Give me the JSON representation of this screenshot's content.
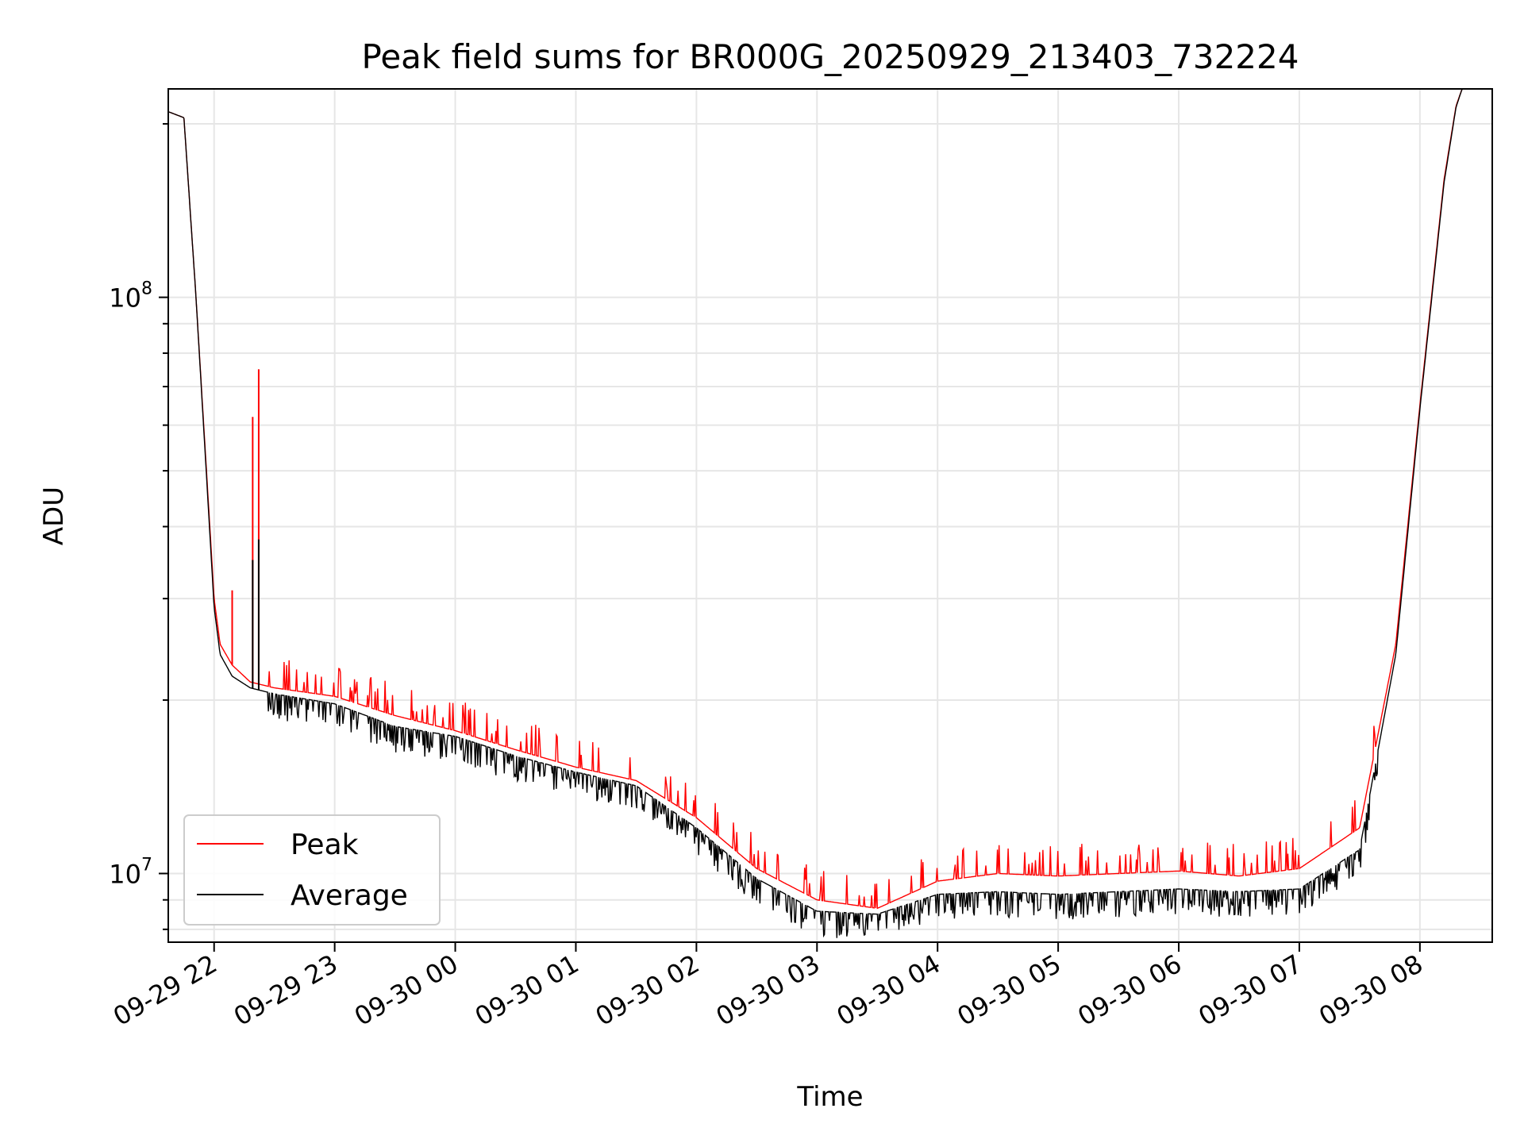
{
  "chart_data": {
    "type": "line",
    "title": "Peak field sums for BR000G_20250929_213403_732224",
    "xlabel": "Time",
    "ylabel": "ADU",
    "yscale": "log",
    "ylim": [
      7600000,
      230000000
    ],
    "xlim_hours": [
      -0.38,
      10.6
    ],
    "grid": true,
    "legend_position": "lower-left",
    "x_tick_labels": [
      "09-29 22",
      "09-29 23",
      "09-30 00",
      "09-30 01",
      "09-30 02",
      "09-30 03",
      "09-30 04",
      "09-30 05",
      "09-30 06",
      "09-30 07",
      "09-30 08"
    ],
    "y_tick_labels": [
      {
        "base": "10",
        "exp": "7"
      },
      {
        "base": "10",
        "exp": "8"
      }
    ],
    "x_hours": [
      -0.38,
      -0.25,
      -0.15,
      -0.05,
      0.0,
      0.05,
      0.15,
      0.3,
      0.5,
      1.0,
      1.5,
      2.0,
      2.5,
      3.0,
      3.5,
      4.0,
      4.5,
      5.0,
      5.5,
      6.0,
      6.5,
      7.0,
      7.5,
      8.0,
      8.5,
      9.0,
      9.5,
      9.8,
      10.0,
      10.2,
      10.3,
      10.35
    ],
    "series": [
      {
        "name": "Peak",
        "color": "#ff0000",
        "values": [
          210000000,
          205000000,
          100000000,
          45000000,
          30000000,
          25000000,
          23000000,
          21500000,
          21000000,
          20300000,
          18800000,
          17700000,
          16400000,
          15300000,
          14500000,
          12500000,
          10200000,
          9000000,
          8700000,
          9700000,
          10000000,
          9900000,
          10000000,
          10100000,
          9900000,
          10200000,
          12000000,
          25000000,
          65000000,
          160000000,
          215000000,
          230000000
        ]
      },
      {
        "name": "Average",
        "color": "#000000",
        "values": [
          210000000,
          205000000,
          100000000,
          44000000,
          29000000,
          24000000,
          22000000,
          21000000,
          20500000,
          19700000,
          18000000,
          17300000,
          16000000,
          15000000,
          14200000,
          12000000,
          9800000,
          8600000,
          8500000,
          9200000,
          9300000,
          9200000,
          9300000,
          9400000,
          9300000,
          9400000,
          11000000,
          24000000,
          64000000,
          158000000,
          214000000,
          230000000
        ]
      }
    ],
    "spikes": [
      {
        "series": "Peak",
        "x_hours": 0.32,
        "value": 62000000
      },
      {
        "series": "Peak",
        "x_hours": 0.37,
        "value": 75000000
      },
      {
        "series": "Average",
        "x_hours": 0.32,
        "value": 35000000
      },
      {
        "series": "Average",
        "x_hours": 0.37,
        "value": 38000000
      },
      {
        "series": "Peak",
        "x_hours": 0.15,
        "value": 31000000
      }
    ]
  }
}
